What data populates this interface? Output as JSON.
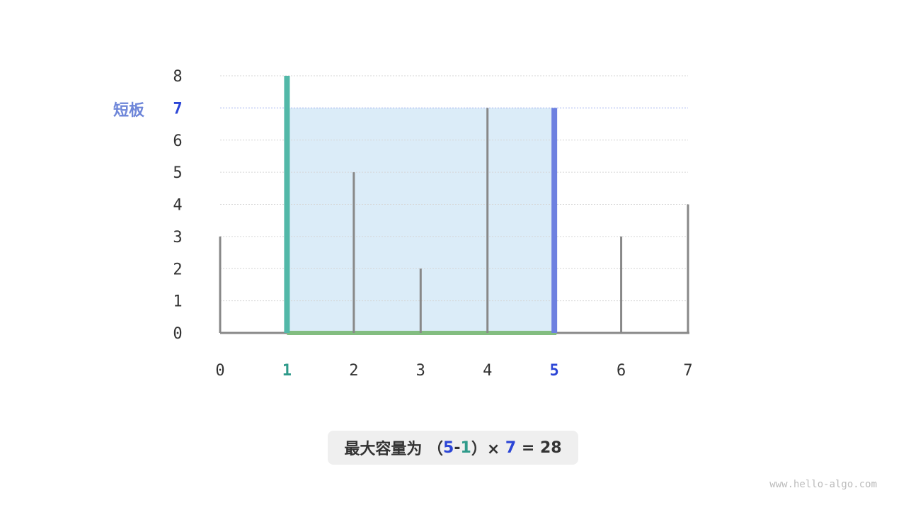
{
  "heights": [
    3,
    8,
    5,
    2,
    7,
    7,
    3,
    4
  ],
  "y_ticks": [
    "0",
    "1",
    "2",
    "3",
    "4",
    "5",
    "6",
    "7",
    "8"
  ],
  "x_ticks": [
    "0",
    "1",
    "2",
    "3",
    "4",
    "5",
    "6",
    "7"
  ],
  "left_index": 1,
  "right_index": 5,
  "short_height": 7,
  "short_label": "短板",
  "result": {
    "prefix": "最大容量为 （",
    "i": "5",
    "minus": "-",
    "j": "1",
    "close": "）× ",
    "h": "7",
    "eq": " = ",
    "value": "28"
  },
  "watermark": "www.hello-algo.com",
  "colors": {
    "left": "#52b8a8",
    "right": "#6d80e0",
    "area": "#dbecf8",
    "base": "#82bd80",
    "bar": "#888888",
    "highlight_text": "#2b45d6",
    "left_text": "#2e9a8a"
  }
}
